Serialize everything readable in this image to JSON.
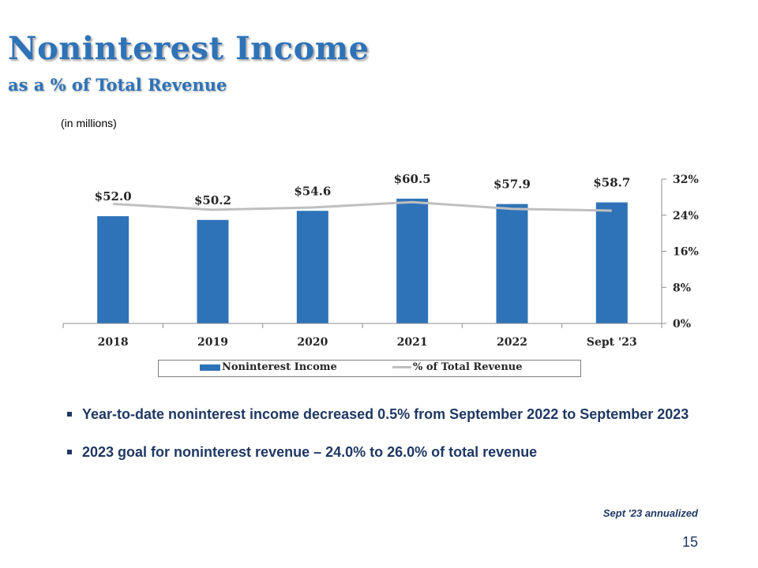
{
  "header": {
    "title": "Noninterest Income",
    "subtitle": "as a % of Total Revenue",
    "units_note": "(in millions)"
  },
  "chart_data": {
    "type": "bar",
    "categories": [
      "2018",
      "2019",
      "2020",
      "2021",
      "2022",
      "Sept '23"
    ],
    "series": [
      {
        "name": "Noninterest Income",
        "type": "bar",
        "axis": "left",
        "values": [
          52.0,
          50.2,
          54.6,
          60.5,
          57.9,
          58.7
        ],
        "labels": [
          "$52.0",
          "$50.2",
          "$54.6",
          "$60.5",
          "$57.9",
          "$58.7"
        ],
        "color": "#2e73b8"
      },
      {
        "name": "% of Total Revenue",
        "type": "line",
        "axis": "right",
        "values": [
          26.5,
          25.2,
          25.7,
          26.9,
          25.4,
          25.0
        ],
        "color": "#bfbfbf"
      }
    ],
    "left_axis": {
      "ylim": [
        0,
        70
      ],
      "visible": false
    },
    "right_axis": {
      "ylim": [
        0,
        32
      ],
      "ticks": [
        0,
        8,
        16,
        24,
        32
      ],
      "tick_labels": [
        "0%",
        "8%",
        "16%",
        "24%",
        "32%"
      ]
    },
    "grid": false,
    "legend_position": "bottom"
  },
  "bullets": [
    "Year-to-date noninterest income decreased 0.5% from September 2022 to September 2023",
    "2023 goal for noninterest revenue – 24.0% to 26.0% of total revenue"
  ],
  "footnote": "Sept '23 annualized",
  "page_number": "15"
}
